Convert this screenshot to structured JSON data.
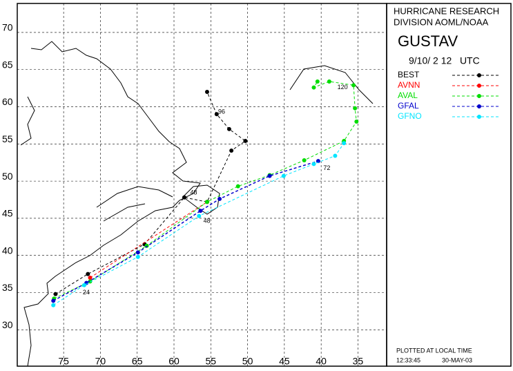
{
  "chart_data": {
    "type": "track-map",
    "title": "GUSTAV",
    "header": [
      "HURRICANE RESEARCH",
      "DIVISION AOML/NOAA"
    ],
    "subtitle": "9/10/ 2 12   UTC",
    "footer": [
      "PLOTTED AT LOCAL TIME",
      "12:33:45",
      "30-MAY-03"
    ],
    "xlim": [
      81.3,
      31.1
    ],
    "ylim": [
      25.1,
      73.9
    ],
    "xticks": [
      75,
      70,
      65,
      60,
      55,
      50,
      45,
      40,
      35
    ],
    "yticks": [
      30,
      35,
      40,
      45,
      50,
      55,
      60,
      65,
      70
    ],
    "grid": true,
    "series": [
      {
        "name": "BEST",
        "color": "#000000",
        "x": [
          76.1,
          71.7,
          64.0,
          58.6,
          55.5,
          52.2,
          50.3,
          52.5,
          54.2,
          55.5
        ],
        "values": [
          34.8,
          37.5,
          41.5,
          47.8,
          47.2,
          54.1,
          55.4,
          57.0,
          59.0,
          62.0
        ]
      },
      {
        "name": "AVNN",
        "color": "#ff0000",
        "x": [
          71.4,
          55.5
        ],
        "values": [
          37.0,
          47.2
        ]
      },
      {
        "name": "AVAL",
        "color": "#00dd00",
        "x": [
          76.3,
          71.4,
          63.7,
          55.5,
          51.3,
          47.0,
          42.3,
          36.9,
          35.2,
          35.4,
          35.6,
          38.9,
          41.0,
          40.5
        ],
        "values": [
          34.2,
          36.5,
          41.3,
          47.2,
          49.3,
          50.8,
          52.8,
          55.4,
          58.0,
          59.8,
          62.9,
          63.4,
          62.6,
          63.4
        ]
      },
      {
        "name": "GFAL",
        "color": "#0000cc",
        "x": [
          76.4,
          71.9,
          64.9,
          56.4,
          53.8,
          47.0,
          40.4
        ],
        "values": [
          33.9,
          36.3,
          40.4,
          46.0,
          47.6,
          50.7,
          52.7
        ]
      },
      {
        "name": "GFNO",
        "color": "#00e5ff",
        "x": [
          76.4,
          72.2,
          64.9,
          56.6,
          45.1,
          41.0,
          38.1,
          36.9
        ],
        "values": [
          33.3,
          36.0,
          39.8,
          45.3,
          50.7,
          52.3,
          53.4,
          55.1
        ]
      }
    ],
    "annotations": [
      {
        "text": "96",
        "x": 54.0,
        "y": 59.3
      },
      {
        "text": "48",
        "x": 57.8,
        "y": 48.4
      },
      {
        "text": "48",
        "x": 56.0,
        "y": 44.6
      },
      {
        "text": "72",
        "x": 39.7,
        "y": 51.7
      },
      {
        "text": "120",
        "x": 37.8,
        "y": 62.6
      },
      {
        "text": "24",
        "x": 72.4,
        "y": 35.0
      }
    ]
  }
}
